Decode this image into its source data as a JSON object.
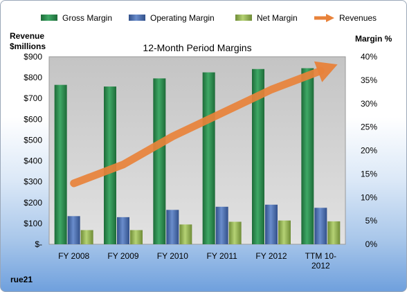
{
  "chart_data": {
    "type": "bar",
    "title": "12-Month Period Margins",
    "left_axis_label": [
      "Revenue",
      "$millions"
    ],
    "right_axis_label": "Margin %",
    "categories": [
      [
        "FY 2008"
      ],
      [
        "FY 2009"
      ],
      [
        "FY 2010"
      ],
      [
        "FY 2011"
      ],
      [
        "FY 2012"
      ],
      [
        "TTM 10-",
        "2012"
      ]
    ],
    "left_ticks": [
      "$-",
      "$100",
      "$200",
      "$300",
      "$400",
      "$500",
      "$600",
      "$700",
      "$800",
      "$900"
    ],
    "right_ticks": [
      "0%",
      "5%",
      "10%",
      "15%",
      "20%",
      "25%",
      "30%",
      "35%",
      "40%"
    ],
    "ylim_left": [
      0,
      900
    ],
    "ylim_right": [
      0,
      40
    ],
    "grid": false,
    "legend_position": "top",
    "series": [
      {
        "name": "Gross Margin",
        "axis": "left",
        "color": "#2e8b4e",
        "values": [
          765,
          757,
          796,
          825,
          841,
          845
        ]
      },
      {
        "name": "Operating Margin",
        "axis": "left",
        "color": "#4a6eaf",
        "values": [
          135,
          130,
          165,
          180,
          190,
          175
        ]
      },
      {
        "name": "Net Margin",
        "axis": "left",
        "color": "#9bbb59",
        "values": [
          68,
          68,
          95,
          108,
          114,
          110
        ]
      }
    ],
    "trend": {
      "name": "Revenues",
      "color": "#e8823a",
      "values": [
        13,
        17,
        23,
        28,
        33,
        37
      ]
    },
    "footnote": "rue21"
  }
}
